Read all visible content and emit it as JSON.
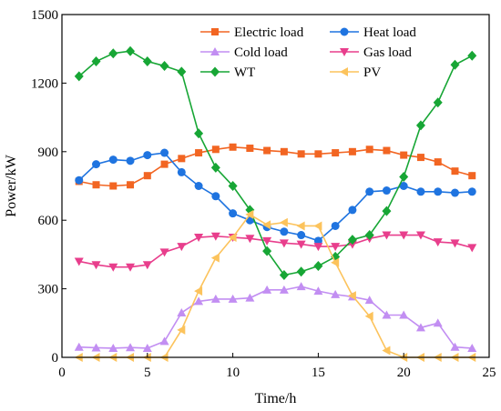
{
  "chart_data": {
    "type": "line",
    "title": "",
    "xlabel": "Time/h",
    "ylabel": "Power/kW",
    "xlim": [
      0,
      25
    ],
    "ylim": [
      0,
      1500
    ],
    "xticks": [
      0,
      5,
      10,
      15,
      20,
      25
    ],
    "yticks": [
      0,
      300,
      600,
      900,
      1200,
      1500
    ],
    "x_tick_labels": [
      "0",
      "5",
      "10",
      "15",
      "20",
      "25"
    ],
    "y_tick_labels": [
      "0",
      "300",
      "600",
      "900",
      "1200",
      "1500"
    ],
    "grid": false,
    "legend_position": "top-right",
    "x": [
      1,
      2,
      3,
      4,
      5,
      6,
      7,
      8,
      9,
      10,
      11,
      12,
      13,
      14,
      15,
      16,
      17,
      18,
      19,
      20,
      21,
      22,
      23,
      24
    ],
    "series": [
      {
        "name": "Electric load",
        "color": "#f26522",
        "marker": "square",
        "values": [
          770,
          755,
          750,
          755,
          795,
          845,
          870,
          895,
          910,
          920,
          915,
          905,
          900,
          890,
          890,
          895,
          900,
          910,
          905,
          885,
          875,
          855,
          815,
          795
        ]
      },
      {
        "name": "Heat load",
        "color": "#1f74e0",
        "marker": "circle",
        "values": [
          775,
          845,
          865,
          860,
          885,
          895,
          810,
          750,
          705,
          630,
          600,
          570,
          550,
          535,
          510,
          575,
          645,
          725,
          730,
          750,
          725,
          725,
          720,
          725
        ]
      },
      {
        "name": "Cold load",
        "color": "#c28ef2",
        "marker": "triangle-up",
        "values": [
          45,
          42,
          40,
          43,
          40,
          70,
          195,
          245,
          255,
          255,
          260,
          295,
          295,
          310,
          290,
          275,
          265,
          250,
          185,
          185,
          130,
          150,
          45,
          40
        ]
      },
      {
        "name": "Gas load",
        "color": "#e83e8c",
        "marker": "triangle-down",
        "values": [
          420,
          405,
          395,
          395,
          405,
          460,
          485,
          525,
          530,
          525,
          520,
          510,
          500,
          495,
          485,
          485,
          495,
          520,
          535,
          535,
          535,
          505,
          500,
          480
        ]
      },
      {
        "name": "WT",
        "color": "#17a635",
        "marker": "diamond",
        "values": [
          1230,
          1295,
          1330,
          1340,
          1295,
          1275,
          1250,
          980,
          830,
          750,
          645,
          465,
          360,
          375,
          400,
          440,
          515,
          535,
          640,
          790,
          1015,
          1115,
          1280,
          1320
        ]
      },
      {
        "name": "PV",
        "color": "#fcc35c",
        "marker": "triangle-left",
        "values": [
          0,
          0,
          0,
          0,
          0,
          0,
          120,
          290,
          435,
          525,
          625,
          580,
          590,
          575,
          575,
          415,
          270,
          180,
          30,
          0,
          0,
          0,
          0,
          0
        ]
      }
    ]
  }
}
